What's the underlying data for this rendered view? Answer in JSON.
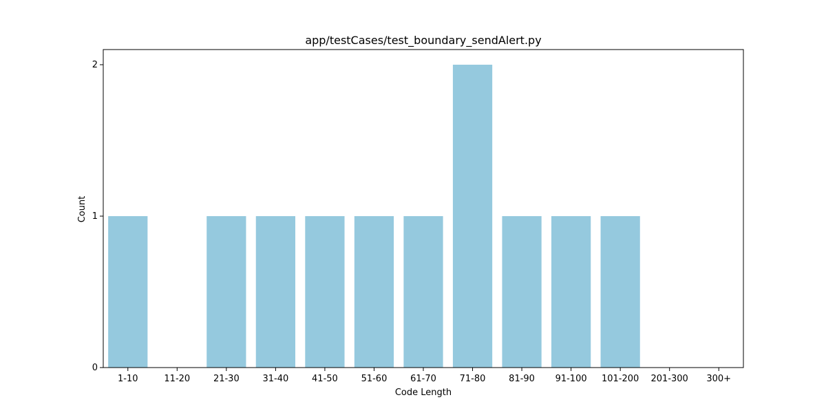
{
  "chart_data": {
    "type": "bar",
    "title": "app/testCases/test_boundary_sendAlert.py",
    "xlabel": "Code Length",
    "ylabel": "Count",
    "categories": [
      "1-10",
      "11-20",
      "21-30",
      "31-40",
      "41-50",
      "51-60",
      "61-70",
      "71-80",
      "81-90",
      "91-100",
      "101-200",
      "201-300",
      "300+"
    ],
    "values": [
      1,
      0,
      1,
      1,
      1,
      1,
      1,
      2,
      1,
      1,
      1,
      0,
      0
    ],
    "ylim": [
      0,
      2.1
    ],
    "yticks": [
      0,
      1,
      2
    ],
    "grid": false,
    "legend": "none",
    "bar_color": "#95c9de"
  }
}
